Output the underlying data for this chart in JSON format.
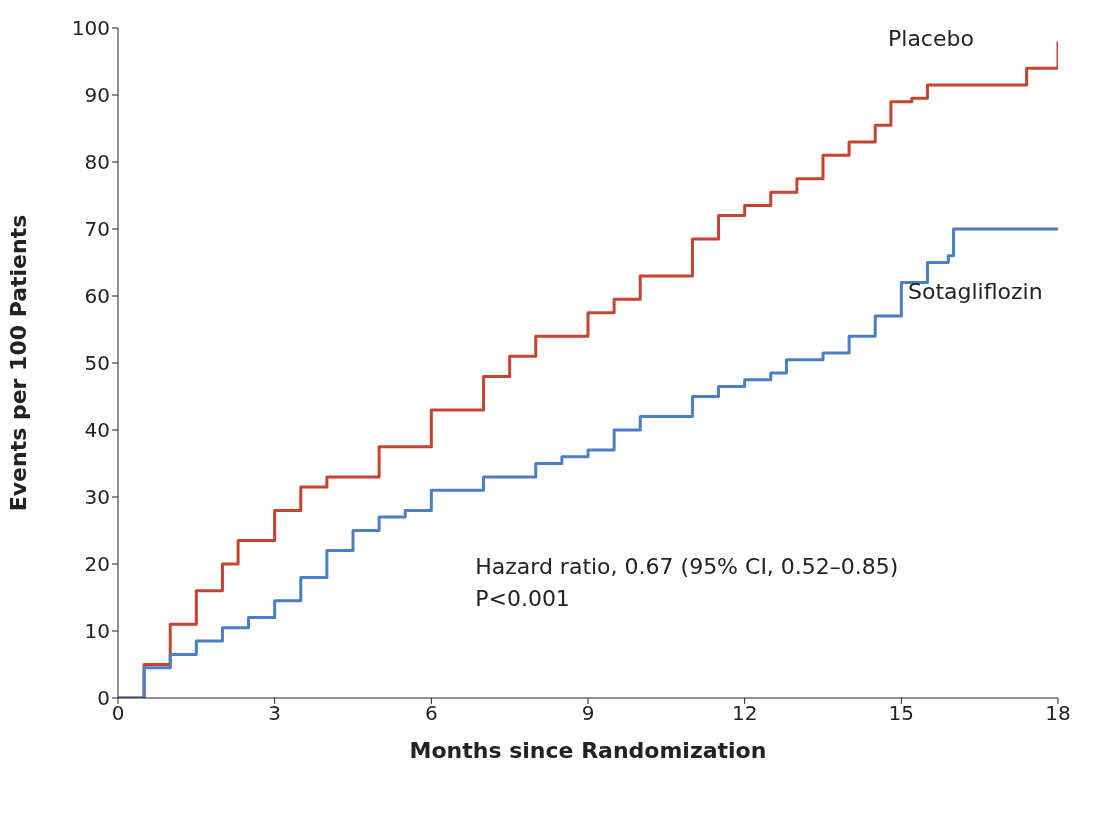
{
  "chart_data": {
    "type": "step",
    "xlabel": "Months since Randomization",
    "ylabel": "Events per 100 Patients",
    "xlim": [
      0,
      18
    ],
    "xticks": [
      0,
      3,
      6,
      9,
      12,
      15,
      18
    ],
    "ylim": [
      0,
      100
    ],
    "yticks": [
      0,
      10,
      20,
      30,
      40,
      50,
      60,
      70,
      80,
      90,
      100
    ],
    "marker": "none",
    "line_style": "solid",
    "annotations": [
      "Hazard ratio, 0.67 (95% CI, 0.52–0.85)",
      "P<0.001"
    ],
    "series": [
      {
        "name": "Placebo",
        "color": "#c8432f",
        "x": [
          0,
          0.5,
          1,
          1.5,
          2,
          2.3,
          3,
          3.5,
          4,
          5,
          6,
          7,
          7.5,
          8,
          9,
          9.5,
          10,
          11,
          11.5,
          12,
          12.5,
          13,
          13.5,
          14,
          14.5,
          14.8,
          15.2,
          15.5,
          17.3,
          17.4,
          18,
          18
        ],
        "values": [
          0,
          5,
          11,
          16,
          20,
          23.5,
          28,
          31.5,
          33,
          37.5,
          43,
          48,
          51,
          54,
          57.5,
          59.5,
          63,
          68.5,
          72,
          73.5,
          75.5,
          77.5,
          81,
          83,
          85.5,
          89,
          89.5,
          91.5,
          91.5,
          94,
          94,
          98
        ]
      },
      {
        "name": "Sotagliflozin",
        "color": "#4a7fc4",
        "x": [
          0,
          0.5,
          1,
          1.5,
          2,
          2.5,
          3,
          3.5,
          4,
          4.5,
          5,
          5.5,
          6,
          7,
          8,
          8.5,
          9,
          9.5,
          10,
          11,
          11.5,
          12,
          12.5,
          12.8,
          13.5,
          14,
          14.5,
          15,
          15.5,
          15.9,
          16,
          18
        ],
        "values": [
          0,
          4.5,
          6.5,
          8.5,
          10.5,
          12,
          14.5,
          18,
          22,
          25,
          27,
          28,
          31,
          33,
          35,
          36,
          37,
          40,
          42,
          45,
          46.5,
          47.5,
          48.5,
          50.5,
          51.5,
          54,
          57,
          62,
          65,
          66,
          70,
          70
        ]
      }
    ]
  }
}
